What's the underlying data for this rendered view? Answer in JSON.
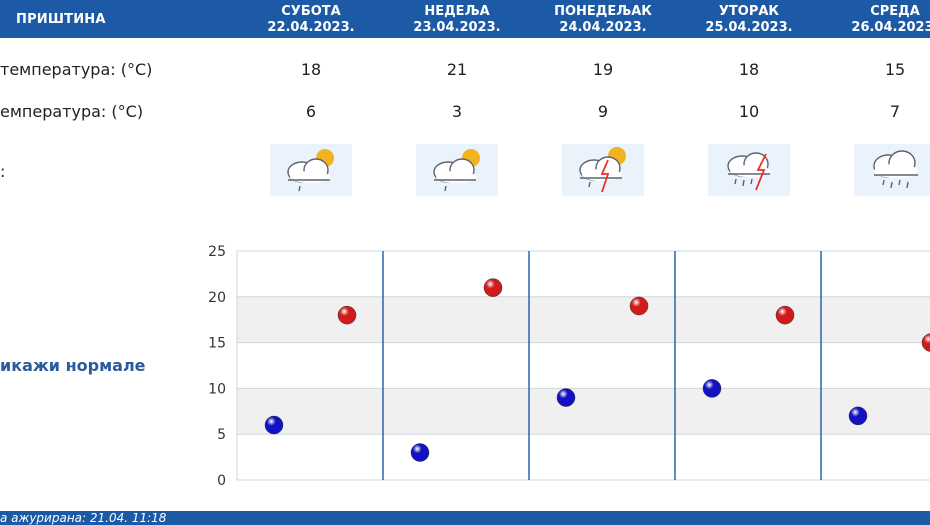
{
  "header": {
    "city": "ПРИШТИНА",
    "days": [
      {
        "name": "СУБОТА",
        "date": "22.04.2023."
      },
      {
        "name": "НЕДЕЉА",
        "date": "23.04.2023."
      },
      {
        "name": "ПОНЕДЕЉАК",
        "date": "24.04.2023."
      },
      {
        "name": "УТОРАК",
        "date": "25.04.2023."
      },
      {
        "name": "СРЕДА",
        "date": "26.04.2023."
      }
    ]
  },
  "rows": {
    "max_label": "температура: (°C)",
    "min_label": "емпература: (°C)",
    "icon_label": ":",
    "max": [
      "18",
      "21",
      "19",
      "18",
      "15"
    ],
    "min": [
      "6",
      "3",
      "9",
      "10",
      "7"
    ],
    "icons": [
      "partly-cloudy-rain-icon",
      "partly-cloudy-rain-icon",
      "thunderstorm-sun-icon",
      "thunderstorm-rain-icon",
      "cloud-rain-icon"
    ]
  },
  "normals_link": "икажи нормале",
  "chart_data": {
    "type": "scatter",
    "ylim": [
      0,
      25
    ],
    "yticks": [
      "0",
      "5",
      "10",
      "15",
      "20",
      "25"
    ],
    "series": [
      {
        "values": [
          18,
          21,
          19,
          18,
          15
        ],
        "color": "#d11a1a"
      },
      {
        "values": [
          6,
          3,
          9,
          10,
          7
        ],
        "color": "#1212c4"
      }
    ]
  },
  "footer": {
    "text": "а ажурирана:  21.04. 11:18"
  },
  "colors": {
    "accent": "#1d5aa6",
    "link": "#2b5b9c",
    "max_dot": "#d11a1a",
    "min_dot": "#1212c4"
  }
}
